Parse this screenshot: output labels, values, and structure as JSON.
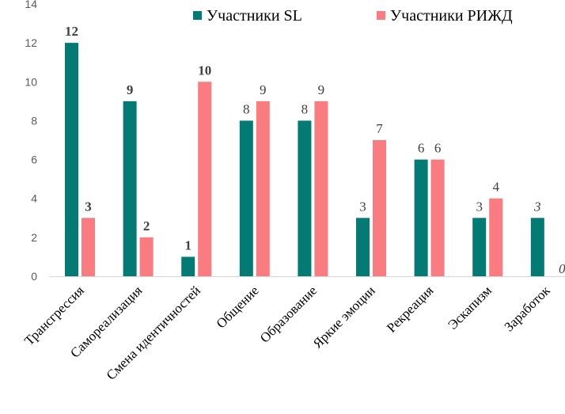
{
  "chart_data": {
    "type": "bar",
    "categories": [
      "Трансгрессия",
      "Самореализация",
      "Смена идентичностей",
      "Общение",
      "Образование",
      "Яркие эмоции",
      "Рекреация",
      "Эскапизм",
      "Заработок"
    ],
    "series": [
      {
        "name": "Участники SL",
        "color": "#037a74",
        "values": [
          12,
          9,
          1,
          8,
          8,
          3,
          6,
          3,
          3
        ]
      },
      {
        "name": "Участники РИЖД",
        "color": "#fa7c80",
        "values": [
          3,
          2,
          10,
          9,
          9,
          7,
          6,
          4,
          0
        ]
      }
    ],
    "ylim": [
      0,
      14
    ],
    "yticks": [
      0,
      2,
      4,
      6,
      8,
      10,
      12,
      14
    ],
    "legend_position": "top",
    "data_label_styles": [
      [
        "bold",
        "bold",
        "bold",
        "normal",
        "normal",
        "normal",
        "normal",
        "normal",
        "italic"
      ],
      [
        "bold",
        "bold",
        "bold",
        "normal",
        "normal",
        "normal",
        "normal",
        "normal",
        "italic"
      ]
    ],
    "title": "",
    "xlabel": "",
    "ylabel": ""
  }
}
